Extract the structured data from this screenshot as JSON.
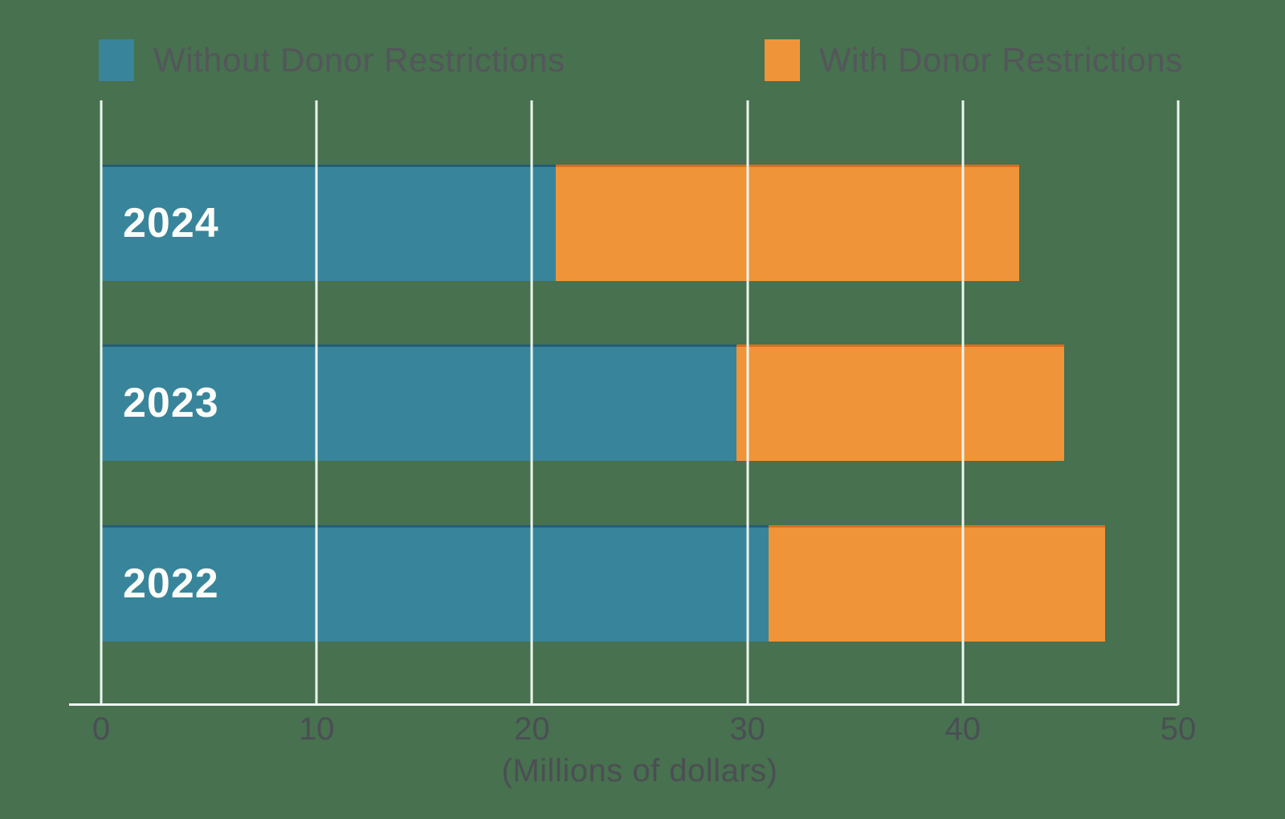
{
  "chart_data": {
    "type": "bar",
    "orientation": "horizontal",
    "stacked": true,
    "title": "",
    "categories": [
      "2024",
      "2023",
      "2022"
    ],
    "series": [
      {
        "name": "Without Donor Restrictions",
        "color": "#38859B",
        "values": [
          21.1,
          29.5,
          31.0
        ]
      },
      {
        "name": "With Donor Restrictions",
        "color": "#F0943A",
        "values": [
          21.5,
          15.2,
          15.6
        ]
      }
    ],
    "totals": [
      42.6,
      44.7,
      46.6
    ],
    "xlabel": "(Millions of dollars)",
    "ylabel": "",
    "xlim": [
      0,
      50
    ],
    "xticks": [
      0,
      10,
      20,
      30,
      40,
      50
    ],
    "grid": "vertical gridlines on, drawn over bars",
    "legend_position": "top"
  },
  "colors": {
    "background": "#47714F",
    "gridline": "#EDF6F1",
    "tick_text": "#4B4E55",
    "legend_text": "#54565B",
    "bar_label_text": "#FCFCF8",
    "without_series": "#38859B",
    "with_series": "#F0943A"
  }
}
